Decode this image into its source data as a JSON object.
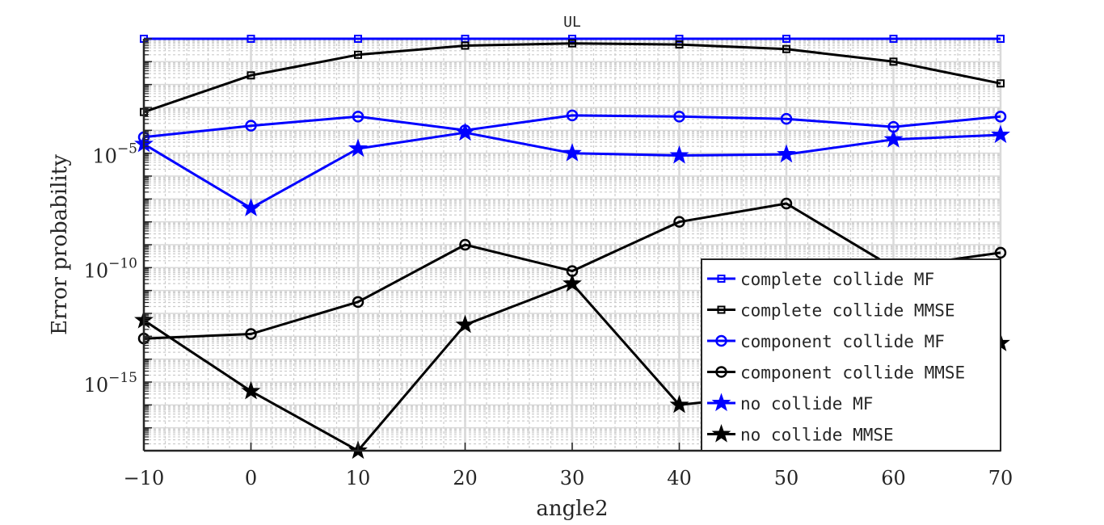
{
  "chart_data": {
    "type": "line",
    "title": "UL",
    "xlabel": "angle2",
    "ylabel": "Error probability",
    "yscale": "log",
    "x": [
      -10,
      0,
      10,
      20,
      30,
      40,
      50,
      60,
      70
    ],
    "xlim": [
      -10,
      70
    ],
    "xticks": [
      "-10",
      "0",
      "10",
      "20",
      "30",
      "40",
      "50",
      "60",
      "70"
    ],
    "ylim_exponent": [
      -18,
      0
    ],
    "yticks": [
      {
        "exp": -5,
        "base": "10",
        "sup": "-5"
      },
      {
        "exp": -10,
        "base": "10",
        "sup": "-10"
      },
      {
        "exp": -15,
        "base": "10",
        "sup": "-15"
      }
    ],
    "grid": true,
    "legend_position": "bottom-right",
    "series": [
      {
        "name": "complete collide MF",
        "color": "#0000ff",
        "marker": "square",
        "log10_values": [
          0,
          0,
          0,
          0,
          0,
          0,
          0,
          0,
          0
        ]
      },
      {
        "name": "complete collide MMSE",
        "color": "#000000",
        "marker": "square",
        "log10_values": [
          -3.2,
          -1.6,
          -0.7,
          -0.3,
          -0.2,
          -0.25,
          -0.45,
          -1.0,
          -1.95
        ]
      },
      {
        "name": "component collide MF",
        "color": "#0000ff",
        "marker": "circle",
        "log10_values": [
          -4.3,
          -3.8,
          -3.4,
          -4.0,
          -3.35,
          -3.4,
          -3.5,
          -3.85,
          -3.4
        ]
      },
      {
        "name": "component collide MMSE",
        "color": "#000000",
        "marker": "circle",
        "log10_values": [
          -13.1,
          -12.9,
          -11.5,
          -9.0,
          -10.15,
          -8.0,
          -7.2,
          -10.0,
          -9.35
        ]
      },
      {
        "name": "no collide MF",
        "color": "#0000ff",
        "marker": "star",
        "log10_values": [
          -4.6,
          -7.4,
          -4.8,
          -4.1,
          -5.0,
          -5.1,
          -5.05,
          -4.4,
          -4.2
        ]
      },
      {
        "name": "no collide MMSE",
        "color": "#000000",
        "marker": "star",
        "log10_values": [
          -12.3,
          -15.4,
          -18.0,
          -12.5,
          -10.7,
          -16.0,
          -15.5,
          -15.0,
          -13.3
        ]
      }
    ]
  }
}
